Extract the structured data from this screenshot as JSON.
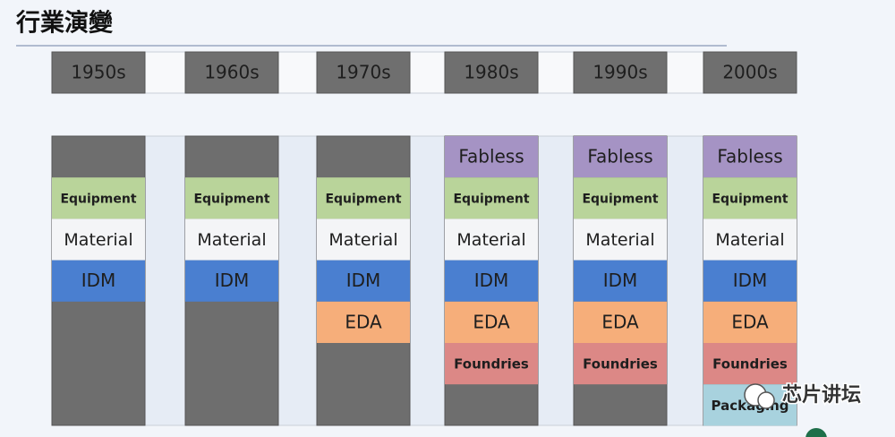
{
  "title": "行業演變",
  "columns": [
    {
      "decade": "1950s",
      "layers": [
        null,
        "Equipment",
        "Material",
        "IDM",
        null,
        null,
        null
      ]
    },
    {
      "decade": "1960s",
      "layers": [
        null,
        "Equipment",
        "Material",
        "IDM",
        null,
        null,
        null
      ]
    },
    {
      "decade": "1970s",
      "layers": [
        null,
        "Equipment",
        "Material",
        "IDM",
        "EDA",
        null,
        null
      ]
    },
    {
      "decade": "1980s",
      "layers": [
        "Fabless",
        "Equipment",
        "Material",
        "IDM",
        "EDA",
        "Foundries",
        null
      ]
    },
    {
      "decade": "1990s",
      "layers": [
        "Fabless",
        "Equipment",
        "Material",
        "IDM",
        "EDA",
        "Foundries",
        null
      ]
    },
    {
      "decade": "2000s",
      "layers": [
        "Fabless",
        "Equipment",
        "Material",
        "IDM",
        "EDA",
        "Foundries",
        "Packaging"
      ]
    }
  ],
  "watermark": "芯片讲坛"
}
